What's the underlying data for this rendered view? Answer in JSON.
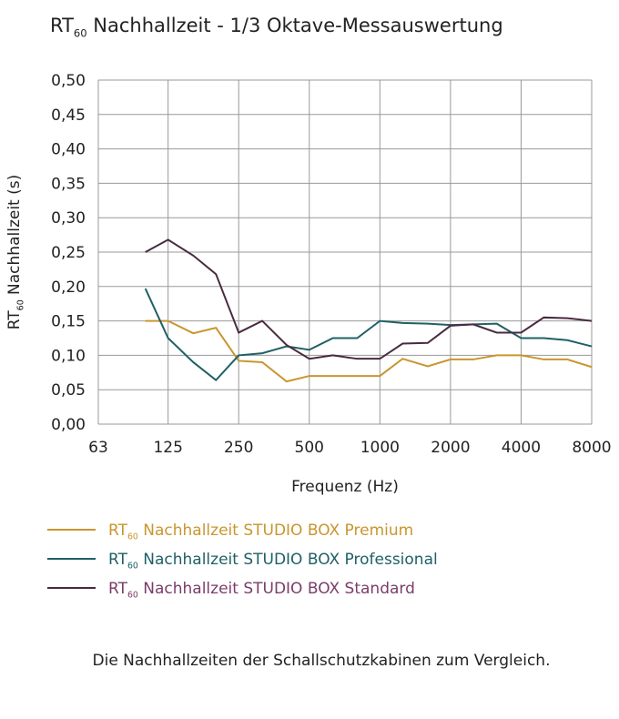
{
  "chart_data": {
    "type": "line",
    "title": "RT60 Nachhallzeit  - 1/3 Oktave-Messauswertung",
    "title_parts": {
      "pre": "RT",
      "sub": "60",
      "post": " Nachhallzeit  - 1/3 Oktave-Messauswertung"
    },
    "xlabel": "Frequenz (Hz)",
    "ylabel_parts": {
      "pre": "RT",
      "sub": "60",
      "post": " Nachhallzeit (s)"
    },
    "ylim": [
      0,
      0.5
    ],
    "x_scale": "log",
    "xlim": [
      63,
      8000
    ],
    "x_ticks": [
      63,
      125,
      250,
      500,
      1000,
      2000,
      4000,
      8000
    ],
    "x_tick_labels": [
      "63",
      "125",
      "250",
      "500",
      "1000",
      "2000",
      "4000",
      "8000"
    ],
    "y_ticks": [
      0,
      0.05,
      0.1,
      0.15,
      0.2,
      0.25,
      0.3,
      0.35,
      0.4,
      0.45,
      0.5
    ],
    "y_tick_labels": [
      "0,00",
      "0,05",
      "0,10",
      "0,15",
      "0,20",
      "0,25",
      "0,30",
      "0,35",
      "0,40",
      "0,45",
      "0,50"
    ],
    "grid": true,
    "legend_position": "bottom",
    "x": [
      100,
      125,
      160,
      200,
      250,
      315,
      400,
      500,
      630,
      800,
      1000,
      1250,
      1600,
      2000,
      2500,
      3150,
      4000,
      5000,
      6300,
      8000
    ],
    "series": [
      {
        "name": "RT60 Nachhallzeit STUDIO BOX Premium",
        "label_pre": "RT",
        "label_sub": "60",
        "label_post": " Nachhallzeit STUDIO BOX Premium",
        "color": "#c9962e",
        "text_color": "#c9962e",
        "values": [
          0.15,
          0.15,
          0.132,
          0.14,
          0.092,
          0.09,
          0.062,
          0.07,
          0.07,
          0.07,
          0.07,
          0.095,
          0.084,
          0.094,
          0.094,
          0.1,
          0.1,
          0.094,
          0.094,
          0.083
        ]
      },
      {
        "name": "RT60 Nachhallzeit STUDIO BOX Professional",
        "label_pre": "RT",
        "label_sub": "60",
        "label_post": " Nachhallzeit STUDIO BOX Professional",
        "color": "#1f6066",
        "text_color": "#1f6066",
        "values": [
          0.197,
          0.125,
          0.09,
          0.064,
          0.1,
          0.103,
          0.113,
          0.108,
          0.125,
          0.125,
          0.15,
          0.147,
          0.146,
          0.144,
          0.145,
          0.146,
          0.125,
          0.125,
          0.122,
          0.113
        ]
      },
      {
        "name": "RT60 Nachhallzeit STUDIO BOX Standard",
        "label_pre": "RT",
        "label_sub": "60",
        "label_post": " Nachhallzeit STUDIO BOX Standard",
        "color": "#4a2a40",
        "text_color": "#7a3d6a",
        "values": [
          0.25,
          0.268,
          0.245,
          0.218,
          0.133,
          0.15,
          0.115,
          0.095,
          0.1,
          0.095,
          0.095,
          0.117,
          0.118,
          0.143,
          0.145,
          0.133,
          0.133,
          0.155,
          0.154,
          0.15
        ]
      }
    ]
  },
  "caption": "Die Nachhallzeiten der Schallschutzkabinen zum Vergleich."
}
